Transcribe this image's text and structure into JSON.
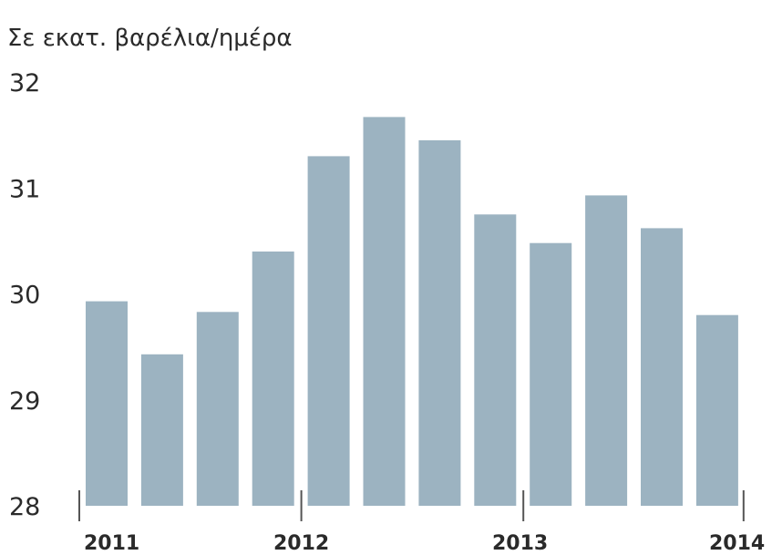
{
  "chart_data": {
    "type": "bar",
    "title": "",
    "ylabel": "Σε εκατ. βαρέλια/ημέρα",
    "xlabel": "",
    "ylim": [
      28,
      32
    ],
    "yticks": [
      "32",
      "31",
      "30",
      "29",
      "28"
    ],
    "x_year_labels": [
      "2011",
      "2012",
      "2013",
      "2014"
    ],
    "values": [
      29.93,
      29.43,
      29.83,
      30.4,
      31.3,
      31.67,
      31.45,
      30.75,
      30.48,
      30.93,
      30.62,
      29.8
    ],
    "bar_color": "#9cb3c1",
    "grid": false
  }
}
